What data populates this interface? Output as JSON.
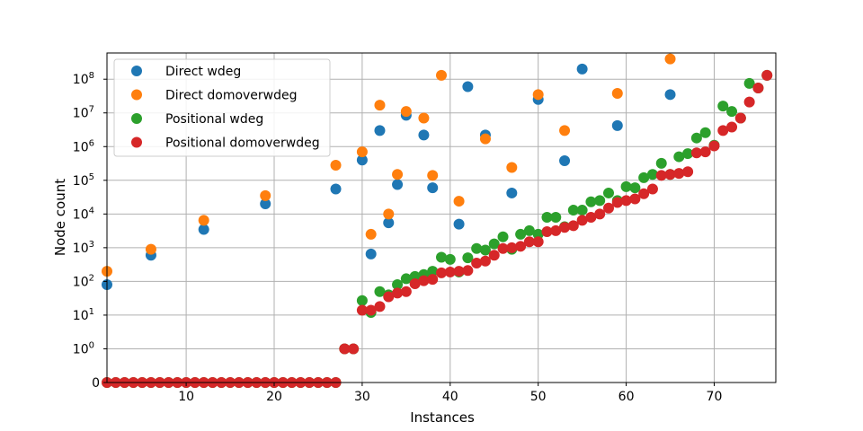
{
  "chart_data": {
    "type": "scatter",
    "title": "",
    "xlabel": "Instances",
    "ylabel": "Node count",
    "xlim": [
      1,
      77
    ],
    "yscale": "symlog",
    "ylim": [
      0,
      600000000
    ],
    "grid": true,
    "legend_position": "top-left",
    "x_ticks": [
      10,
      20,
      30,
      40,
      50,
      60,
      70
    ],
    "y_ticks": [
      {
        "value": 0,
        "base": "0",
        "exp": ""
      },
      {
        "value": 1,
        "base": "10",
        "exp": "0"
      },
      {
        "value": 10,
        "base": "10",
        "exp": "1"
      },
      {
        "value": 100,
        "base": "10",
        "exp": "2"
      },
      {
        "value": 1000,
        "base": "10",
        "exp": "3"
      },
      {
        "value": 10000,
        "base": "10",
        "exp": "4"
      },
      {
        "value": 100000,
        "base": "10",
        "exp": "5"
      },
      {
        "value": 1000000,
        "base": "10",
        "exp": "6"
      },
      {
        "value": 10000000,
        "base": "10",
        "exp": "7"
      },
      {
        "value": 100000000,
        "base": "10",
        "exp": "8"
      }
    ],
    "series": [
      {
        "name": "Direct wdeg",
        "color": "#1f77b4",
        "points": [
          [
            1,
            80
          ],
          [
            6,
            600
          ],
          [
            12,
            3500
          ],
          [
            19,
            20000
          ],
          [
            27,
            55000
          ],
          [
            30,
            400000
          ],
          [
            31,
            650
          ],
          [
            32,
            3000000
          ],
          [
            33,
            5500
          ],
          [
            34,
            75000
          ],
          [
            35,
            8500000
          ],
          [
            37,
            2200000
          ],
          [
            38,
            60000
          ],
          [
            41,
            5000
          ],
          [
            42,
            60000000
          ],
          [
            44,
            2200000
          ],
          [
            47,
            42000
          ],
          [
            50,
            25000000
          ],
          [
            53,
            380000
          ],
          [
            55,
            200000000
          ],
          [
            59,
            4200000
          ],
          [
            65,
            35000000
          ]
        ]
      },
      {
        "name": "Direct domoverwdeg",
        "color": "#ff7f0e",
        "points": [
          [
            1,
            200
          ],
          [
            6,
            900
          ],
          [
            12,
            6500
          ],
          [
            19,
            35000
          ],
          [
            27,
            280000
          ],
          [
            30,
            700000
          ],
          [
            31,
            2500
          ],
          [
            32,
            17000000
          ],
          [
            33,
            10000
          ],
          [
            34,
            150000
          ],
          [
            35,
            11000000
          ],
          [
            37,
            7000000
          ],
          [
            38,
            140000
          ],
          [
            39,
            130000000
          ],
          [
            41,
            24000
          ],
          [
            44,
            1700000
          ],
          [
            47,
            240000
          ],
          [
            50,
            35000000
          ],
          [
            53,
            3000000
          ],
          [
            59,
            38000000
          ],
          [
            65,
            400000000
          ]
        ]
      },
      {
        "name": "Positional wdeg",
        "color": "#2ca02c",
        "points": [
          [
            1,
            0
          ],
          [
            2,
            0
          ],
          [
            3,
            0
          ],
          [
            4,
            0
          ],
          [
            5,
            0
          ],
          [
            6,
            0
          ],
          [
            7,
            0
          ],
          [
            8,
            0
          ],
          [
            9,
            0
          ],
          [
            10,
            0
          ],
          [
            11,
            0
          ],
          [
            12,
            0
          ],
          [
            13,
            0
          ],
          [
            14,
            0
          ],
          [
            15,
            0
          ],
          [
            16,
            0
          ],
          [
            17,
            0
          ],
          [
            18,
            0
          ],
          [
            19,
            0
          ],
          [
            20,
            0
          ],
          [
            21,
            0
          ],
          [
            22,
            0
          ],
          [
            23,
            0
          ],
          [
            24,
            0
          ],
          [
            25,
            0
          ],
          [
            26,
            0
          ],
          [
            27,
            0
          ],
          [
            28,
            1
          ],
          [
            29,
            1
          ],
          [
            30,
            27
          ],
          [
            31,
            12
          ],
          [
            32,
            50
          ],
          [
            33,
            40
          ],
          [
            34,
            80
          ],
          [
            35,
            120
          ],
          [
            36,
            140
          ],
          [
            37,
            160
          ],
          [
            38,
            200
          ],
          [
            39,
            520
          ],
          [
            40,
            450
          ],
          [
            41,
            190
          ],
          [
            42,
            500
          ],
          [
            43,
            950
          ],
          [
            44,
            850
          ],
          [
            45,
            1300
          ],
          [
            46,
            2100
          ],
          [
            47,
            900
          ],
          [
            48,
            2500
          ],
          [
            49,
            3200
          ],
          [
            50,
            2500
          ],
          [
            51,
            8000
          ],
          [
            52,
            8000
          ],
          [
            53,
            4200
          ],
          [
            54,
            13000
          ],
          [
            55,
            13000
          ],
          [
            56,
            23000
          ],
          [
            57,
            25000
          ],
          [
            58,
            42000
          ],
          [
            59,
            25000
          ],
          [
            60,
            65000
          ],
          [
            61,
            60000
          ],
          [
            62,
            120000
          ],
          [
            63,
            150000
          ],
          [
            64,
            320000
          ],
          [
            65,
            150000
          ],
          [
            66,
            500000
          ],
          [
            67,
            620000
          ],
          [
            68,
            1800000
          ],
          [
            69,
            2600000
          ],
          [
            70,
            1100000
          ],
          [
            71,
            16000000
          ],
          [
            72,
            11000000
          ],
          [
            73,
            7000000
          ],
          [
            74,
            75000000
          ],
          [
            75,
            55000000
          ],
          [
            76,
            130000000
          ]
        ]
      },
      {
        "name": "Positional domoverwdeg",
        "color": "#d62728",
        "points": [
          [
            1,
            0
          ],
          [
            2,
            0
          ],
          [
            3,
            0
          ],
          [
            4,
            0
          ],
          [
            5,
            0
          ],
          [
            6,
            0
          ],
          [
            7,
            0
          ],
          [
            8,
            0
          ],
          [
            9,
            0
          ],
          [
            10,
            0
          ],
          [
            11,
            0
          ],
          [
            12,
            0
          ],
          [
            13,
            0
          ],
          [
            14,
            0
          ],
          [
            15,
            0
          ],
          [
            16,
            0
          ],
          [
            17,
            0
          ],
          [
            18,
            0
          ],
          [
            19,
            0
          ],
          [
            20,
            0
          ],
          [
            21,
            0
          ],
          [
            22,
            0
          ],
          [
            23,
            0
          ],
          [
            24,
            0
          ],
          [
            25,
            0
          ],
          [
            26,
            0
          ],
          [
            27,
            0
          ],
          [
            28,
            1
          ],
          [
            29,
            1
          ],
          [
            30,
            14
          ],
          [
            31,
            14
          ],
          [
            32,
            18
          ],
          [
            33,
            35
          ],
          [
            34,
            45
          ],
          [
            35,
            50
          ],
          [
            36,
            85
          ],
          [
            37,
            105
          ],
          [
            38,
            115
          ],
          [
            39,
            180
          ],
          [
            40,
            190
          ],
          [
            41,
            200
          ],
          [
            42,
            210
          ],
          [
            43,
            350
          ],
          [
            44,
            400
          ],
          [
            45,
            600
          ],
          [
            46,
            950
          ],
          [
            47,
            1000
          ],
          [
            48,
            1100
          ],
          [
            49,
            1500
          ],
          [
            50,
            1500
          ],
          [
            51,
            3000
          ],
          [
            52,
            3200
          ],
          [
            53,
            4000
          ],
          [
            54,
            4500
          ],
          [
            55,
            6500
          ],
          [
            56,
            8000
          ],
          [
            57,
            10000
          ],
          [
            58,
            15000
          ],
          [
            59,
            22000
          ],
          [
            60,
            25000
          ],
          [
            61,
            28000
          ],
          [
            62,
            40000
          ],
          [
            63,
            55000
          ],
          [
            64,
            140000
          ],
          [
            65,
            150000
          ],
          [
            66,
            160000
          ],
          [
            67,
            180000
          ],
          [
            68,
            650000
          ],
          [
            69,
            700000
          ],
          [
            70,
            1050000
          ],
          [
            71,
            3000000
          ],
          [
            72,
            3800000
          ],
          [
            73,
            7000000
          ],
          [
            74,
            21000000
          ],
          [
            75,
            55000000
          ],
          [
            76,
            130000000
          ]
        ]
      }
    ]
  }
}
